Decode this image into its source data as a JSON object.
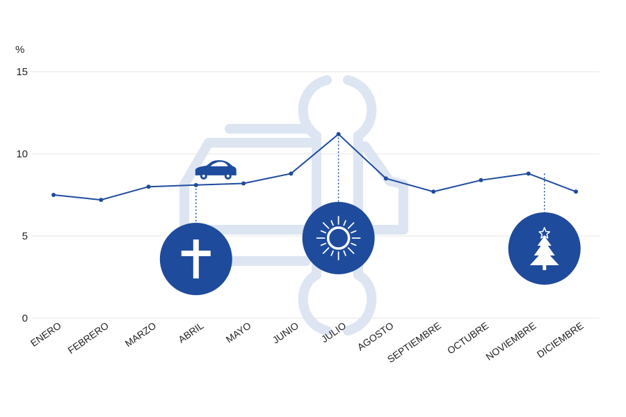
{
  "chart_data": {
    "type": "line",
    "unit_label": "%",
    "categories": [
      "ENERO",
      "FEBRERO",
      "MARZO",
      "ABRIL",
      "MAYO",
      "JUNIO",
      "JULIO",
      "AGOSTO",
      "SEPTIEMBRE",
      "OCTUBRE",
      "NOVIEMBRE",
      "DICIEMBRE"
    ],
    "values": [
      7.5,
      7.2,
      8.0,
      8.1,
      8.2,
      8.8,
      11.2,
      8.5,
      7.7,
      8.4,
      8.8,
      7.7
    ],
    "yticks": [
      0,
      5,
      10,
      15
    ],
    "ylim": [
      0,
      15
    ],
    "grid": true,
    "line_color": "#1e4b9c",
    "badge_color": "#1e4b9c",
    "watermark_color": "#dde5f2",
    "annotations": [
      {
        "month": "ABRIL",
        "icon": "cross-icon"
      },
      {
        "month": "JULIO",
        "icon": "sun-icon"
      },
      {
        "month": "NOVIEMBRE",
        "icon": "christmas-tree-icon"
      }
    ],
    "decoration_icon": "car-icon",
    "watermark_icon": "wrench-car-watermark-icon"
  }
}
